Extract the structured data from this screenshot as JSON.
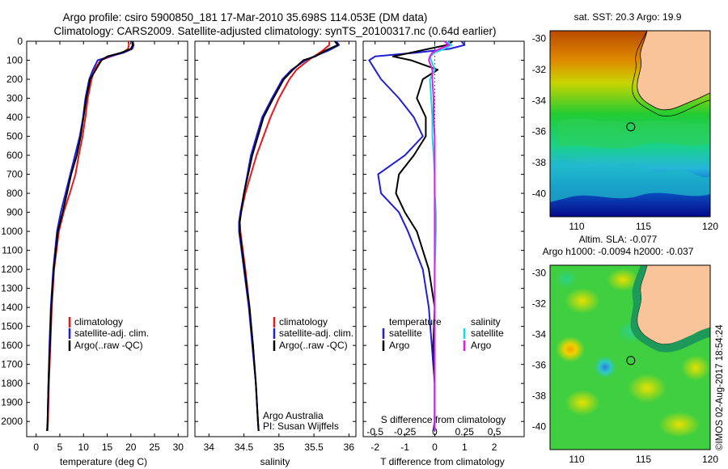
{
  "header": {
    "line1": "Argo profile: csiro 5900850_181 17-Mar-2010 35.698S 114.053E (DM data)",
    "line2": "Climatology: CARS2009. Satellite-adjusted climatology: synTS_20100317.nc (0.64d earlier)"
  },
  "colors": {
    "climatology": "#e41a1c",
    "satellite": "#1f1fd6",
    "argo": "#000000",
    "sat_sal": "#19d9e6",
    "argo_sal": "#e619e6",
    "land": "#f9c49a"
  },
  "chart_data": [
    {
      "id": "temperature",
      "type": "line",
      "xlabel": "temperature (deg C)",
      "ylabel": "",
      "xlim": [
        -2,
        32
      ],
      "ylim": [
        2080,
        0
      ],
      "xticks": [
        "0",
        "5",
        "10",
        "15",
        "20",
        "25",
        "30"
      ],
      "yticks": [
        "0",
        "100",
        "200",
        "300",
        "400",
        "500",
        "600",
        "700",
        "800",
        "900",
        "1000",
        "1100",
        "1200",
        "1300",
        "1400",
        "1500",
        "1600",
        "1700",
        "1800",
        "1900",
        "2000"
      ],
      "legend": [
        "climatology",
        "satellite-adj. clim.",
        "Argo(..raw -QC)"
      ],
      "series": [
        {
          "name": "climatology",
          "depth": [
            0,
            20,
            40,
            60,
            80,
            100,
            150,
            200,
            300,
            400,
            500,
            600,
            700,
            800,
            900,
            1000,
            1200,
            1400,
            1600,
            1800,
            2000,
            2050
          ],
          "values": [
            19.5,
            19.6,
            19.4,
            18.3,
            15.8,
            13.6,
            12.3,
            11.7,
            10.9,
            10.4,
            9.8,
            9.0,
            8.3,
            7.1,
            5.8,
            4.8,
            3.8,
            3.3,
            3.0,
            2.7,
            2.5,
            2.4
          ]
        },
        {
          "name": "satellite",
          "depth": [
            0,
            20,
            40,
            60,
            80,
            100,
            150,
            200,
            300,
            400,
            500,
            600,
            700,
            800,
            900,
            1000,
            1200,
            1400,
            1600,
            1800,
            2000,
            2050
          ],
          "values": [
            20.4,
            20.6,
            20.3,
            18.5,
            15.5,
            13.0,
            12.0,
            11.2,
            10.4,
            9.9,
            9.2,
            8.2,
            7.2,
            6.2,
            5.2,
            4.4,
            3.6,
            3.1,
            2.8,
            2.6,
            2.4,
            2.3
          ]
        },
        {
          "name": "argo",
          "depth": [
            0,
            20,
            40,
            60,
            80,
            100,
            150,
            200,
            300,
            400,
            500,
            600,
            700,
            800,
            900,
            1000,
            1200,
            1400,
            1600,
            1800,
            2000,
            2050
          ],
          "values": [
            20.3,
            20.4,
            20.0,
            18.0,
            15.0,
            13.8,
            12.6,
            11.4,
            10.6,
            10.0,
            9.4,
            8.6,
            7.4,
            6.5,
            5.6,
            4.6,
            3.7,
            3.2,
            2.9,
            2.6,
            2.4,
            2.3
          ]
        }
      ]
    },
    {
      "id": "salinity",
      "type": "line",
      "xlabel": "salinity",
      "ylabel": "",
      "xlim": [
        33.8,
        36.1
      ],
      "ylim": [
        2080,
        0
      ],
      "xticks": [
        "34",
        "34.5",
        "35",
        "35.5",
        "36"
      ],
      "legend": [
        "climatology",
        "satellite-adj. clim.",
        "Argo(..raw -QC)"
      ],
      "note1": "Argo Australia",
      "note2": "PI: Susan Wijffels",
      "series": [
        {
          "name": "climatology",
          "depth": [
            0,
            20,
            50,
            80,
            100,
            150,
            200,
            300,
            400,
            500,
            600,
            700,
            800,
            900,
            950,
            1000,
            1200,
            1400,
            1600,
            1800,
            2000,
            2050
          ],
          "values": [
            35.72,
            35.72,
            35.62,
            35.5,
            35.42,
            35.25,
            35.15,
            35.0,
            34.88,
            34.78,
            34.68,
            34.6,
            34.52,
            34.46,
            34.44,
            34.45,
            34.52,
            34.58,
            34.63,
            34.67,
            34.7,
            34.71
          ]
        },
        {
          "name": "satellite",
          "depth": [
            0,
            20,
            50,
            80,
            100,
            150,
            200,
            300,
            400,
            500,
            600,
            700,
            800,
            900,
            950,
            1000,
            1200,
            1400,
            1600,
            1800,
            2000,
            2050
          ],
          "values": [
            35.82,
            35.86,
            35.7,
            35.5,
            35.38,
            35.18,
            35.05,
            34.9,
            34.76,
            34.68,
            34.6,
            34.55,
            34.5,
            34.45,
            34.43,
            34.43,
            34.5,
            34.57,
            34.62,
            34.67,
            34.7,
            34.71
          ]
        },
        {
          "name": "argo",
          "depth": [
            0,
            20,
            50,
            80,
            100,
            150,
            200,
            300,
            400,
            500,
            600,
            700,
            800,
            900,
            950,
            1000,
            1200,
            1400,
            1600,
            1800,
            2000,
            2050
          ],
          "values": [
            35.8,
            35.84,
            35.66,
            35.52,
            35.35,
            35.2,
            35.07,
            34.92,
            34.78,
            34.7,
            34.62,
            34.56,
            34.5,
            34.46,
            34.44,
            34.44,
            34.51,
            34.58,
            34.63,
            34.67,
            34.7,
            34.71
          ]
        }
      ]
    },
    {
      "id": "difference",
      "type": "line",
      "xlabel": "T difference from climatology",
      "xlabel_top": "S difference from climatology",
      "xlim": [
        -2.4,
        3.0
      ],
      "ylim": [
        2080,
        0
      ],
      "xticks": [
        "-2",
        "-1",
        "0",
        "1",
        "2"
      ],
      "xticks_top": [
        "-0.5",
        "-0.25",
        "0",
        "0.25",
        "0.5"
      ],
      "legend_title_left": "temperature",
      "legend_title_right": "salinity",
      "legend": [
        "satellite",
        "Argo",
        "satellite",
        "Argo"
      ],
      "series": [
        {
          "name": "T satellite",
          "depth": [
            0,
            20,
            40,
            60,
            80,
            100,
            150,
            200,
            300,
            400,
            500,
            600,
            700,
            800,
            900,
            1000,
            1200,
            1400,
            1600,
            1800,
            2000,
            2050
          ],
          "values": [
            0.9,
            1.0,
            0.5,
            -0.6,
            -2.0,
            -2.2,
            -2.0,
            -1.8,
            -1.2,
            -0.7,
            -0.4,
            -1.0,
            -1.9,
            -1.8,
            -1.2,
            -0.9,
            -0.4,
            -0.2,
            -0.1,
            0.0,
            0.0,
            -0.05
          ]
        },
        {
          "name": "T argo",
          "depth": [
            0,
            20,
            40,
            60,
            80,
            100,
            150,
            200,
            300,
            400,
            500,
            600,
            700,
            800,
            900,
            1000,
            1200,
            1400,
            1600,
            1800,
            2000,
            2050
          ],
          "values": [
            0.6,
            0.4,
            -0.2,
            -0.8,
            -1.4,
            -0.8,
            0.1,
            -0.4,
            -0.6,
            -0.3,
            -0.3,
            -0.7,
            -1.2,
            -1.3,
            -1.0,
            -0.6,
            -0.2,
            0.0,
            -0.05,
            0.0,
            0.0,
            0.0
          ]
        },
        {
          "name": "S satellite",
          "depth": [
            0,
            20,
            40,
            60,
            80,
            100,
            150,
            200,
            300,
            400,
            500,
            600,
            700,
            800,
            900,
            1000,
            1200,
            1400,
            1600,
            1800,
            2000,
            2050
          ],
          "values": [
            0.1,
            0.14,
            0.08,
            0.0,
            -0.04,
            -0.03,
            0.0,
            -0.04,
            -0.03,
            -0.02,
            -0.02,
            -0.01,
            0.0,
            0.0,
            0.01,
            0.01,
            0.0,
            0.0,
            0.0,
            0.0,
            0.0,
            0.0
          ]
        },
        {
          "name": "S argo",
          "depth": [
            0,
            20,
            40,
            60,
            80,
            100,
            150,
            200,
            300,
            400,
            500,
            600,
            700,
            800,
            900,
            1000,
            1200,
            1400,
            1600,
            1800,
            2000,
            2050
          ],
          "values": [
            0.08,
            0.12,
            0.04,
            -0.02,
            -0.04,
            -0.05,
            -0.02,
            -0.02,
            -0.01,
            -0.01,
            0.0,
            0.0,
            0.0,
            0.0,
            0.0,
            0.0,
            0.0,
            0.0,
            0.0,
            0.0,
            0.0,
            0.0
          ]
        }
      ]
    },
    {
      "id": "sst_map",
      "type": "heatmap",
      "title": "sat. SST: 20.3 Argo: 19.9",
      "xlim": [
        108,
        120
      ],
      "ylim": [
        -41.5,
        -29.5
      ],
      "xticks": [
        "110",
        "115",
        "120"
      ],
      "yticks": [
        "-30",
        "-32",
        "-34",
        "-36",
        "-38",
        "-40"
      ],
      "marker": {
        "lon": 114.05,
        "lat": -35.7
      }
    },
    {
      "id": "sla_map",
      "type": "heatmap",
      "title1": "Altim. SLA: -0.077",
      "title2": "Argo h1000: -0.0094 h2000: -0.037",
      "xlim": [
        108,
        120
      ],
      "ylim": [
        -41.5,
        -29.5
      ],
      "xticks": [
        "110",
        "115",
        "120"
      ],
      "yticks": [
        "-30",
        "-32",
        "-34",
        "-36",
        "-38",
        "-40"
      ],
      "marker": {
        "lon": 114.05,
        "lat": -35.7
      }
    }
  ],
  "footer": {
    "credit": "©IMOS 02-Aug-2017 18:54:24"
  }
}
